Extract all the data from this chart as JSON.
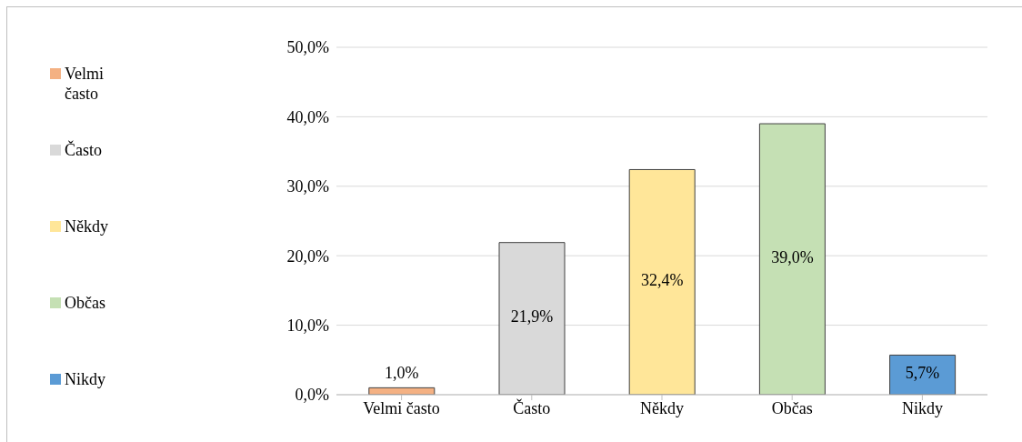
{
  "chart_data": {
    "type": "bar",
    "categories": [
      "Velmi často",
      "Často",
      "Někdy",
      "Občas",
      "Nikdy"
    ],
    "stacked": true,
    "series": [
      {
        "name": "Velmi často",
        "color": "#f4b183",
        "values": [
          1.0,
          null,
          null,
          null,
          null
        ],
        "value_labels": [
          "1,0%",
          null,
          null,
          null,
          null
        ]
      },
      {
        "name": "Často",
        "color": "#d9d9d9",
        "values": [
          null,
          21.9,
          null,
          null,
          null
        ],
        "value_labels": [
          null,
          "21,9%",
          null,
          null,
          null
        ]
      },
      {
        "name": "Někdy",
        "color": "#ffe699",
        "values": [
          null,
          null,
          32.4,
          null,
          null
        ],
        "value_labels": [
          null,
          null,
          "32,4%",
          null,
          null
        ]
      },
      {
        "name": "Občas",
        "color": "#c5e0b4",
        "values": [
          null,
          null,
          null,
          39.0,
          null
        ],
        "value_labels": [
          null,
          null,
          null,
          "39,0%",
          null
        ]
      },
      {
        "name": "Nikdy",
        "color": "#5b9bd5",
        "values": [
          null,
          null,
          null,
          null,
          5.7
        ],
        "value_labels": [
          null,
          null,
          null,
          null,
          "5,7%"
        ]
      }
    ],
    "ylim": [
      0,
      50
    ],
    "yticks": [
      {
        "value": 0,
        "label": "0,0%"
      },
      {
        "value": 10,
        "label": "10,0%"
      },
      {
        "value": 20,
        "label": "20,0%"
      },
      {
        "value": 30,
        "label": "30,0%"
      },
      {
        "value": 40,
        "label": "40,0%"
      },
      {
        "value": 50,
        "label": "50,0%"
      }
    ],
    "grid": "y",
    "legend": "left"
  }
}
